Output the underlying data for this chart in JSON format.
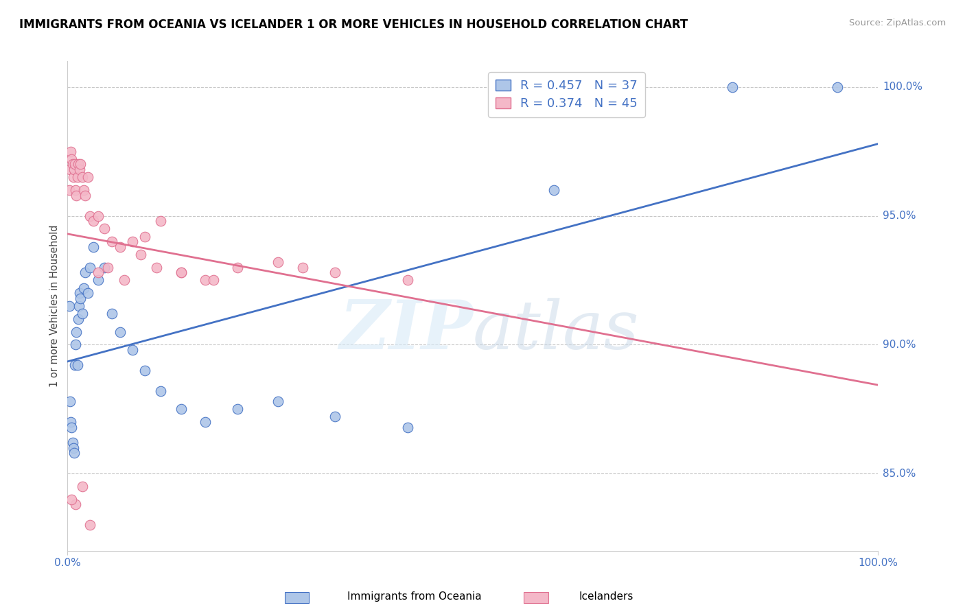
{
  "title": "IMMIGRANTS FROM OCEANIA VS ICELANDER 1 OR MORE VEHICLES IN HOUSEHOLD CORRELATION CHART",
  "source": "Source: ZipAtlas.com",
  "ylabel": "1 or more Vehicles in Household",
  "blue_R": 0.457,
  "blue_N": 37,
  "pink_R": 0.374,
  "pink_N": 45,
  "blue_color": "#aec6e8",
  "pink_color": "#f4b8c8",
  "blue_line_color": "#4472c4",
  "pink_line_color": "#e07090",
  "legend_label_blue": "Immigrants from Oceania",
  "legend_label_pink": "Icelanders",
  "watermark_zip": "ZIP",
  "watermark_atlas": "atlas",
  "xlim": [
    0.0,
    1.0
  ],
  "ylim": [
    0.82,
    1.01
  ],
  "y_ticks": [
    0.85,
    0.9,
    0.95,
    1.0
  ],
  "y_tick_labels": [
    "85.0%",
    "90.0%",
    "95.0%",
    "100.0%"
  ],
  "x_ticks": [
    0.0,
    1.0
  ],
  "x_tick_labels": [
    "0.0%",
    "100.0%"
  ],
  "blue_x": [
    0.002,
    0.003,
    0.004,
    0.005,
    0.006,
    0.007,
    0.008,
    0.009,
    0.01,
    0.011,
    0.012,
    0.013,
    0.014,
    0.015,
    0.016,
    0.018,
    0.02,
    0.022,
    0.025,
    0.028,
    0.032,
    0.038,
    0.045,
    0.055,
    0.065,
    0.08,
    0.095,
    0.115,
    0.14,
    0.17,
    0.21,
    0.26,
    0.33,
    0.42,
    0.6,
    0.82,
    0.95
  ],
  "blue_y": [
    0.915,
    0.878,
    0.87,
    0.868,
    0.862,
    0.86,
    0.858,
    0.892,
    0.9,
    0.905,
    0.892,
    0.91,
    0.915,
    0.92,
    0.918,
    0.912,
    0.922,
    0.928,
    0.92,
    0.93,
    0.938,
    0.925,
    0.93,
    0.912,
    0.905,
    0.898,
    0.89,
    0.882,
    0.875,
    0.87,
    0.875,
    0.878,
    0.872,
    0.868,
    0.96,
    1.0,
    1.0
  ],
  "pink_x": [
    0.002,
    0.003,
    0.004,
    0.005,
    0.006,
    0.007,
    0.008,
    0.009,
    0.01,
    0.011,
    0.012,
    0.013,
    0.015,
    0.016,
    0.018,
    0.02,
    0.022,
    0.025,
    0.028,
    0.032,
    0.038,
    0.045,
    0.055,
    0.065,
    0.08,
    0.095,
    0.115,
    0.14,
    0.17,
    0.21,
    0.26,
    0.33,
    0.42,
    0.29,
    0.18,
    0.14,
    0.11,
    0.09,
    0.07,
    0.05,
    0.038,
    0.028,
    0.018,
    0.01,
    0.005
  ],
  "pink_y": [
    0.96,
    0.968,
    0.975,
    0.972,
    0.97,
    0.965,
    0.968,
    0.97,
    0.96,
    0.958,
    0.965,
    0.97,
    0.968,
    0.97,
    0.965,
    0.96,
    0.958,
    0.965,
    0.95,
    0.948,
    0.95,
    0.945,
    0.94,
    0.938,
    0.94,
    0.942,
    0.948,
    0.928,
    0.925,
    0.93,
    0.932,
    0.928,
    0.925,
    0.93,
    0.925,
    0.928,
    0.93,
    0.935,
    0.925,
    0.93,
    0.928,
    0.83,
    0.845,
    0.838,
    0.84
  ]
}
